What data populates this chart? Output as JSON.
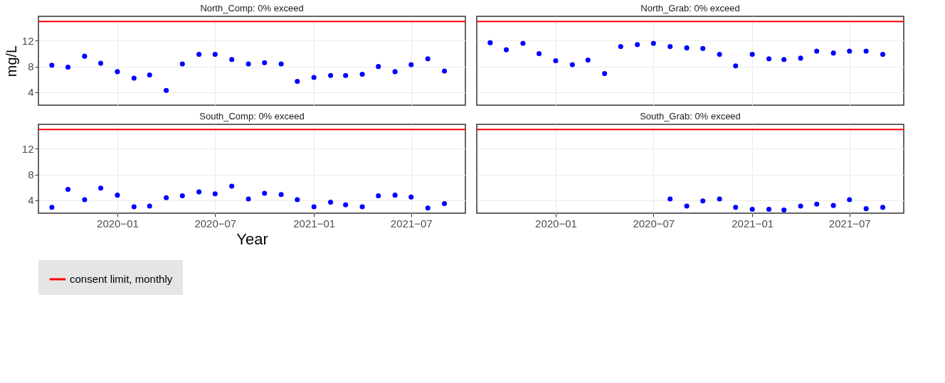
{
  "chart_data": [
    {
      "type": "scatter",
      "title": "North_Comp: 0% exceed",
      "ylabel": "mg/L",
      "tick_labels": "y",
      "grid": true,
      "marker": "circle",
      "x": [
        "2019-09",
        "2019-10",
        "2019-11",
        "2019-12",
        "2020-01",
        "2020-02",
        "2020-03",
        "2020-04",
        "2020-05",
        "2020-06",
        "2020-07",
        "2020-08",
        "2020-09",
        "2020-10",
        "2020-11",
        "2020-12",
        "2021-01",
        "2021-02",
        "2021-03",
        "2021-04",
        "2021-05",
        "2021-06",
        "2021-07",
        "2021-08",
        "2021-09"
      ],
      "series": [
        {
          "color": "#0000ff",
          "values": [
            8.2,
            7.9,
            9.6,
            8.5,
            7.2,
            6.2,
            6.7,
            4.3,
            8.4,
            9.9,
            9.9,
            9.1,
            8.4,
            8.6,
            8.4,
            5.7,
            6.3,
            6.6,
            6.6,
            6.8,
            8.0,
            7.2,
            8.3,
            9.2,
            7.3
          ]
        }
      ],
      "xlim": [
        "2019-08-07",
        "2021-10-10"
      ],
      "xticks": [
        {
          "value": "2020-01",
          "label": null
        },
        {
          "value": "2020-07",
          "label": null
        },
        {
          "value": "2021-01",
          "label": null
        },
        {
          "value": "2021-07",
          "label": null
        }
      ],
      "ylim": [
        2.0,
        15.8
      ],
      "yticks": [
        4,
        8,
        12
      ],
      "ref_lines": [
        {
          "axis": "y",
          "value": 15,
          "color": "#ff0000"
        }
      ]
    },
    {
      "type": "scatter",
      "title": "North_Grab: 0% exceed",
      "tick_labels": false,
      "grid": true,
      "marker": "circle",
      "x": [
        "2019-09",
        "2019-10",
        "2019-11",
        "2019-12",
        "2020-01",
        "2020-02",
        "2020-03",
        "2020-04",
        "2020-05",
        "2020-06",
        "2020-07",
        "2020-08",
        "2020-09",
        "2020-10",
        "2020-11",
        "2020-12",
        "2021-01",
        "2021-02",
        "2021-03",
        "2021-04",
        "2021-05",
        "2021-06",
        "2021-07",
        "2021-08",
        "2021-09"
      ],
      "series": [
        {
          "color": "#0000ff",
          "values": [
            11.7,
            10.6,
            11.6,
            10.0,
            8.9,
            8.3,
            9.0,
            6.9,
            11.1,
            11.4,
            11.6,
            11.1,
            10.9,
            10.8,
            9.9,
            8.1,
            9.9,
            9.2,
            9.1,
            9.3,
            10.4,
            10.1,
            10.4,
            10.4,
            9.9
          ]
        }
      ],
      "xlim": [
        "2019-08-07",
        "2021-10-10"
      ],
      "xticks": [
        {
          "value": "2020-01",
          "label": null
        },
        {
          "value": "2020-07",
          "label": null
        },
        {
          "value": "2021-01",
          "label": null
        },
        {
          "value": "2021-07",
          "label": null
        }
      ],
      "ylim": [
        2.0,
        15.8
      ],
      "yticks": [
        {
          "value": 4,
          "label": null
        },
        {
          "value": 8,
          "label": null
        },
        {
          "value": 12,
          "label": null
        }
      ],
      "ref_lines": [
        {
          "axis": "y",
          "value": 15,
          "color": "#ff0000"
        }
      ]
    },
    {
      "type": "scatter",
      "title": "South_Comp: 0% exceed",
      "xlabel": "Year",
      "grid": true,
      "legend": "bottom",
      "marker": "circle",
      "x": [
        "2019-09",
        "2019-10",
        "2019-11",
        "2019-12",
        "2020-01",
        "2020-02",
        "2020-03",
        "2020-04",
        "2020-05",
        "2020-06",
        "2020-07",
        "2020-08",
        "2020-09",
        "2020-10",
        "2020-11",
        "2020-12",
        "2021-01",
        "2021-02",
        "2021-03",
        "2021-04",
        "2021-05",
        "2021-06",
        "2021-07",
        "2021-08",
        "2021-09"
      ],
      "series": [
        {
          "color": "#0000ff",
          "values": [
            2.9,
            5.7,
            4.1,
            5.9,
            4.8,
            3.0,
            3.1,
            4.4,
            4.7,
            5.3,
            5.0,
            6.2,
            4.2,
            5.1,
            4.9,
            4.1,
            3.0,
            3.7,
            3.3,
            3.0,
            4.7,
            4.8,
            4.5,
            2.8,
            3.5
          ]
        }
      ],
      "xlim": [
        "2019-08-07",
        "2021-10-10"
      ],
      "xticks": [
        {
          "value": "2020-01",
          "label": "2020−01"
        },
        {
          "value": "2020-07",
          "label": "2020−07"
        },
        {
          "value": "2021-01",
          "label": "2021−01"
        },
        {
          "value": "2021-07",
          "label": "2021−07"
        }
      ],
      "ylim": [
        2.0,
        15.8
      ],
      "yticks": [
        4,
        8,
        12
      ],
      "ref_lines": [
        {
          "axis": "y",
          "value": 15,
          "label": "consent limit, monthly",
          "color": "#ff0000"
        }
      ]
    },
    {
      "type": "scatter",
      "title": "South_Grab: 0% exceed",
      "tick_labels": "x",
      "grid": true,
      "marker": "circle",
      "x": [
        "2020-08",
        "2020-09",
        "2020-10",
        "2020-11",
        "2020-12",
        "2021-01",
        "2021-02",
        "2021-03",
        "2021-04",
        "2021-05",
        "2021-06",
        "2021-07",
        "2021-08",
        "2021-09"
      ],
      "series": [
        {
          "color": "#0000ff",
          "values": [
            4.2,
            3.1,
            3.9,
            4.2,
            2.9,
            2.6,
            2.6,
            2.5,
            3.1,
            3.4,
            3.2,
            4.1,
            2.7,
            2.9
          ]
        }
      ],
      "xlim": [
        "2019-08-07",
        "2021-10-10"
      ],
      "xticks": [
        {
          "value": "2020-01",
          "label": "2020−01"
        },
        {
          "value": "2020-07",
          "label": "2020−07"
        },
        {
          "value": "2021-01",
          "label": "2021−01"
        },
        {
          "value": "2021-07",
          "label": "2021−07"
        }
      ],
      "ylim": [
        2.0,
        15.8
      ],
      "yticks": [
        {
          "value": 4,
          "label": null
        },
        {
          "value": 8,
          "label": null
        },
        {
          "value": 12,
          "label": null
        }
      ],
      "ref_lines": [
        {
          "axis": "y",
          "value": 15,
          "color": "#ff0000"
        }
      ]
    }
  ]
}
